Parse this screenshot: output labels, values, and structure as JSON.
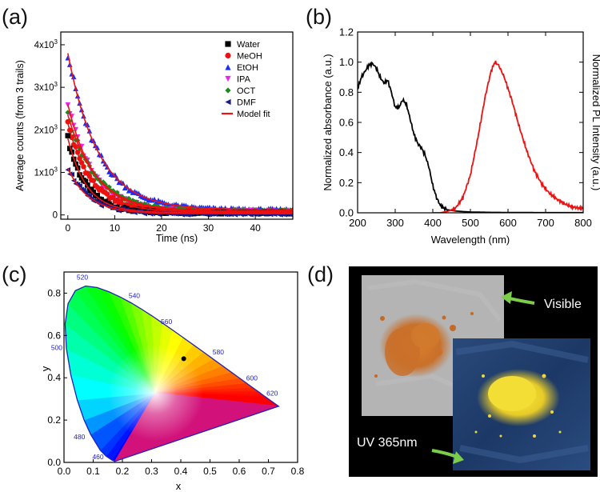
{
  "panels": {
    "a": {
      "label": "(a)"
    },
    "b": {
      "label": "(b)"
    },
    "c": {
      "label": "(c)"
    },
    "d": {
      "label": "(d)"
    }
  },
  "chart_data": [
    {
      "id": "a",
      "type": "scatter",
      "title": "",
      "xlabel": "Time (ns)",
      "ylabel": "Average counts (from 3 trails)",
      "xlim": [
        -1.5,
        48
      ],
      "ylim": [
        -100,
        4300
      ],
      "xticks": [
        0,
        10,
        20,
        30,
        40
      ],
      "xtick_labels": [
        "0",
        "10",
        "20",
        "30",
        "40"
      ],
      "yticks": [
        0,
        1000,
        2000,
        3000,
        4000
      ],
      "ytick_labels": [
        {
          "base": "0",
          "exp": ""
        },
        {
          "base": "1x10",
          "exp": "3"
        },
        {
          "base": "2x10",
          "exp": "3"
        },
        {
          "base": "3x10",
          "exp": "3"
        },
        {
          "base": "4x10",
          "exp": "3"
        }
      ],
      "legend_position": "top-right",
      "series": [
        {
          "name": "Water",
          "marker": "square",
          "color": "#000000",
          "peak": 1800,
          "tau": 4.0,
          "baseline": 55
        },
        {
          "name": "MeOH",
          "marker": "circle",
          "color": "#ee1111",
          "peak": 2150,
          "tau": 5.0,
          "baseline": 70
        },
        {
          "name": "EtOH",
          "marker": "triangle-up",
          "color": "#1c2ff0",
          "peak": 3800,
          "tau": 6.5,
          "baseline": 120
        },
        {
          "name": "IPA",
          "marker": "triangle-down",
          "color": "#ee22ee",
          "peak": 2600,
          "tau": 5.5,
          "baseline": 80
        },
        {
          "name": "OCT",
          "marker": "diamond",
          "color": "#1a8a1a",
          "peak": 2350,
          "tau": 6.0,
          "baseline": 90
        },
        {
          "name": "DMF",
          "marker": "triangle-left",
          "color": "#1a1a8a",
          "peak": 1100,
          "tau": 4.5,
          "baseline": 30
        }
      ],
      "fit": {
        "name": "Model fit",
        "color": "#ee1111"
      }
    },
    {
      "id": "b",
      "type": "line",
      "title": "",
      "xlabel": "Wavelength (nm)",
      "ylabel": "Normalized absorbance (a.u.)",
      "ylabel_right": "Normalized PL Intensity (a.u.)",
      "xlim": [
        200,
        800
      ],
      "ylim": [
        0,
        1.2
      ],
      "xticks": [
        200,
        300,
        400,
        500,
        600,
        700,
        800
      ],
      "xtick_labels": [
        "200",
        "300",
        "400",
        "500",
        "600",
        "700",
        "800"
      ],
      "yticks": [
        0,
        0.2,
        0.4,
        0.6,
        0.8,
        1.0,
        1.2
      ],
      "ytick_labels": [
        "0.0",
        "0.2",
        "0.4",
        "0.6",
        "0.8",
        "1.0",
        "1.2"
      ],
      "series": [
        {
          "name": "Absorbance",
          "color": "#000000",
          "x": [
            200,
            210,
            220,
            230,
            240,
            250,
            260,
            270,
            280,
            290,
            300,
            310,
            320,
            330,
            340,
            350,
            360,
            370,
            380,
            390,
            400,
            410,
            420,
            430,
            440,
            460,
            480,
            500,
            550,
            600,
            700,
            800
          ],
          "y": [
            0.82,
            0.9,
            0.94,
            0.98,
            0.99,
            0.96,
            0.9,
            0.86,
            0.88,
            0.8,
            0.7,
            0.7,
            0.75,
            0.72,
            0.62,
            0.52,
            0.46,
            0.43,
            0.38,
            0.3,
            0.18,
            0.1,
            0.05,
            0.03,
            0.02,
            0.012,
            0.008,
            0.005,
            0.003,
            0.002,
            0.001,
            0.001
          ]
        },
        {
          "name": "PL",
          "color": "#ee1111",
          "x": [
            400,
            420,
            440,
            460,
            480,
            500,
            520,
            540,
            555,
            565,
            575,
            590,
            610,
            630,
            650,
            670,
            690,
            710,
            730,
            750,
            770,
            790,
            800
          ],
          "y": [
            0.0,
            0.0,
            0.01,
            0.03,
            0.1,
            0.25,
            0.5,
            0.78,
            0.94,
            1.0,
            0.98,
            0.9,
            0.75,
            0.57,
            0.41,
            0.28,
            0.19,
            0.13,
            0.09,
            0.06,
            0.04,
            0.03,
            0.03
          ]
        }
      ]
    },
    {
      "id": "c",
      "type": "scatter",
      "title": "",
      "xlabel": "x",
      "ylabel": "y",
      "xlim": [
        0.0,
        0.8
      ],
      "ylim": [
        0.0,
        0.9
      ],
      "xticks": [
        0.0,
        0.1,
        0.2,
        0.3,
        0.4,
        0.5,
        0.6,
        0.7,
        0.8
      ],
      "xtick_labels": [
        "0.0",
        "0.1",
        "0.2",
        "0.3",
        "0.4",
        "0.5",
        "0.6",
        "0.7",
        "0.8"
      ],
      "yticks": [
        0.0,
        0.2,
        0.4,
        0.6,
        0.8
      ],
      "ytick_labels": [
        "0.0",
        "0.2",
        "0.4",
        "0.6",
        "0.8"
      ],
      "locus_color": "#2222bb",
      "wavelength_labels": [
        {
          "nm": "460",
          "x": 0.144,
          "y": 0.03
        },
        {
          "nm": "480",
          "x": 0.091,
          "y": 0.133
        },
        {
          "nm": "500",
          "x": 0.008,
          "y": 0.538
        },
        {
          "nm": "520",
          "x": 0.074,
          "y": 0.834
        },
        {
          "nm": "540",
          "x": 0.23,
          "y": 0.754
        },
        {
          "nm": "560",
          "x": 0.373,
          "y": 0.624
        },
        {
          "nm": "580",
          "x": 0.512,
          "y": 0.487
        },
        {
          "nm": "600",
          "x": 0.627,
          "y": 0.372
        },
        {
          "nm": "620",
          "x": 0.691,
          "y": 0.308
        }
      ],
      "point": {
        "x": 0.41,
        "y": 0.49,
        "color": "#000000"
      }
    }
  ],
  "photo": {
    "visible_label": "Visible",
    "uv_label": "UV 365nm",
    "arrow_color": "#7ccd4a"
  }
}
